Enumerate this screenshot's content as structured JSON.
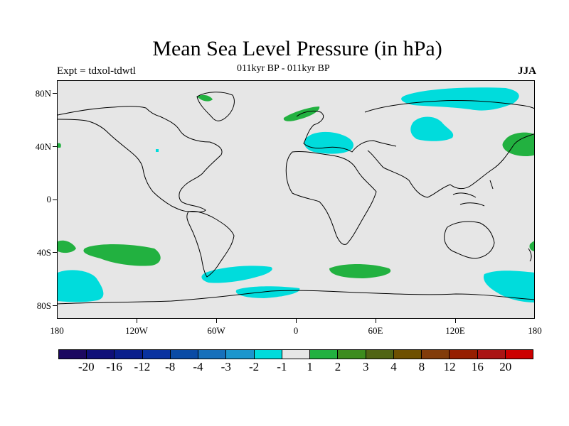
{
  "title": "Mean Sea Level Pressure (in hPa)",
  "subtitle": "011kyr BP - 011kyr BP",
  "experiment": "Expt = tdxol-tdwtl",
  "season": "JJA",
  "map": {
    "lon_ticks": [
      "180",
      "120W",
      "60W",
      "0",
      "60E",
      "120E",
      "180"
    ],
    "lat_ticks": [
      "80N",
      "40N",
      "0",
      "40S",
      "80S"
    ],
    "ocean_color": "#e6e6e6",
    "coastline_color": "#000000"
  },
  "colorbar": {
    "colors": [
      "#1c0860",
      "#0f0f78",
      "#0a1e8c",
      "#0a32a0",
      "#0a4ba5",
      "#1770bb",
      "#1c96cd",
      "#00dcdc",
      "#e6e6e6",
      "#22b140",
      "#3c8c1e",
      "#506414",
      "#6e5000",
      "#823c0a",
      "#961e00",
      "#aa1414",
      "#cc0000"
    ],
    "labels": [
      "-20",
      "-16",
      "-12",
      "-8",
      "-4",
      "-3",
      "-2",
      "-1",
      "1",
      "2",
      "3",
      "4",
      "8",
      "12",
      "16",
      "20"
    ]
  },
  "anomaly_colors": {
    "negative": "#00dcdc",
    "positive": "#22b140"
  }
}
